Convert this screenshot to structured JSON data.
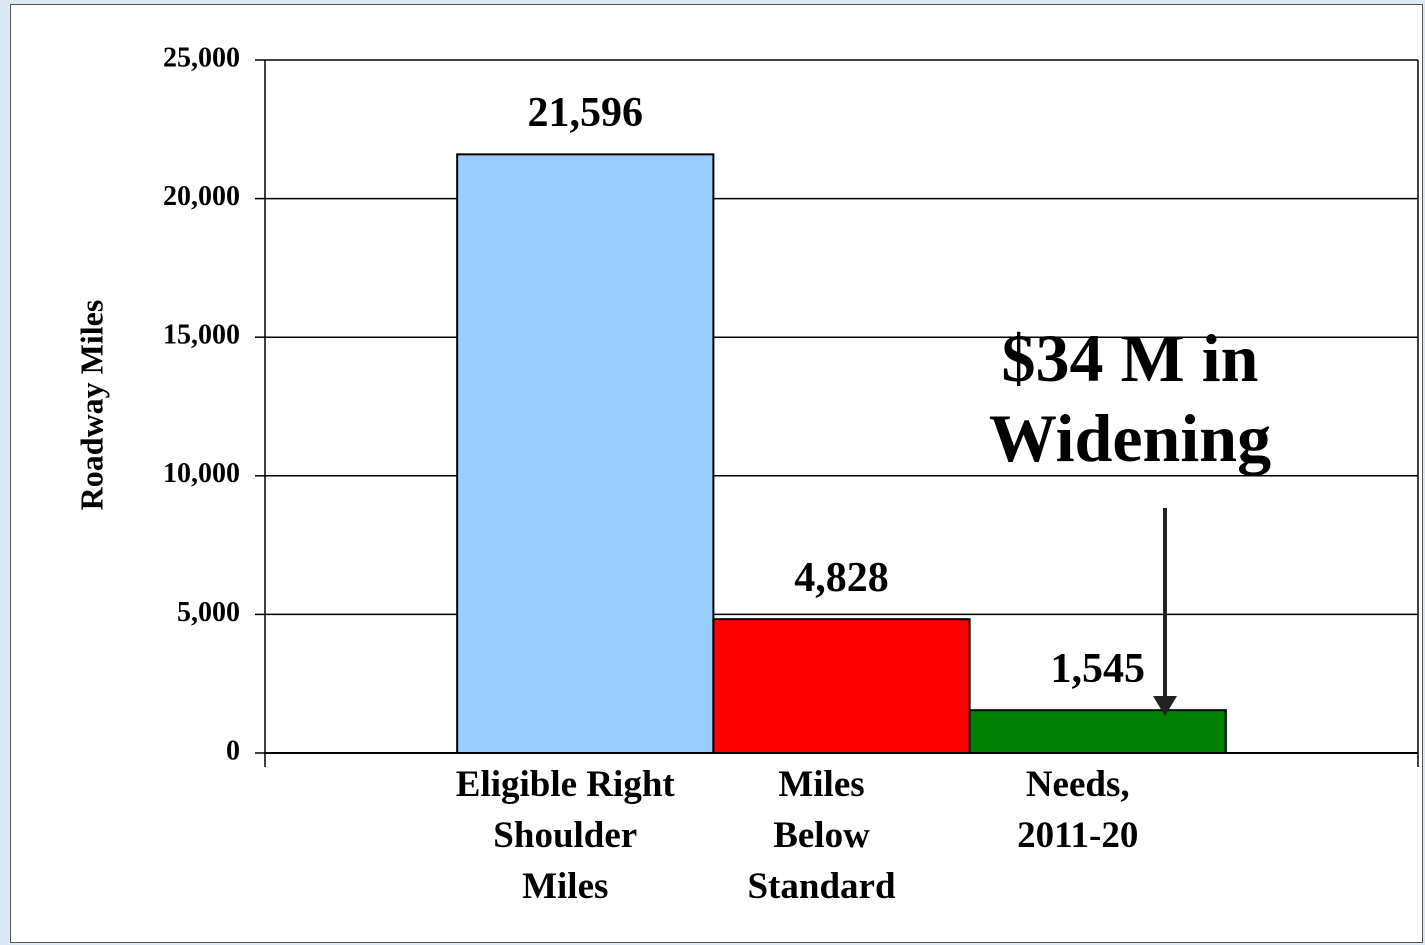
{
  "chart_data": {
    "type": "bar",
    "y_axis_label": "Roadway Miles",
    "categories": [
      "Eligible Right\nShoulder\nMiles",
      "Miles\nBelow\nStandard",
      "Needs,\n2011-20"
    ],
    "values": [
      21596,
      4828,
      1545
    ],
    "value_labels": [
      "21,596",
      "4,828",
      "1,545"
    ],
    "colors": [
      "#99ccff",
      "#ff0000",
      "#008000"
    ],
    "ylim": [
      0,
      25000
    ],
    "yticks": [
      0,
      {
        "value": 5000,
        "label": "5,000"
      },
      {
        "value": 10000,
        "label": "10,000"
      },
      {
        "value": 15000,
        "label": "15,000"
      },
      {
        "value": 20000,
        "label": "20,000"
      },
      {
        "value": 25000,
        "label": "25,000"
      }
    ],
    "grid": true,
    "annotation": "$34 M in\nWidening"
  }
}
